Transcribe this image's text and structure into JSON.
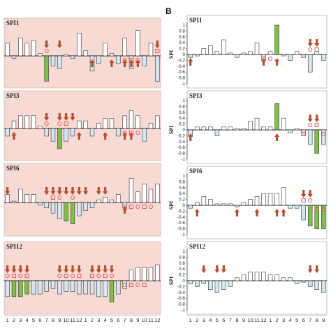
{
  "figure": {
    "panel_b_label": "B",
    "colors": {
      "panel_bg_left": "#f8dad4",
      "panel_bg_right": "#ffffff",
      "bar_positive": "#ffffff",
      "bar_negative": "#d2e8f4",
      "bar_drought": "#7fbf47",
      "arrow": "#b4502e",
      "marker": "#e05050"
    }
  },
  "chart_data": [
    {
      "type": "bar",
      "panel": "A",
      "title": "SPI1",
      "ylim": [
        -1.1,
        1.1
      ],
      "categories": [
        "1",
        "2",
        "3",
        "4",
        "5",
        "6",
        "7",
        "8",
        "9",
        "10",
        "11",
        "12",
        "1",
        "2",
        "3",
        "4",
        "5",
        "6",
        "7",
        "8",
        "9",
        "10",
        "11",
        "12"
      ],
      "values": [
        0.5,
        -0.1,
        0.7,
        0.5,
        0.6,
        0.1,
        -1.0,
        -0.4,
        -0.5,
        0.05,
        -0.1,
        0.9,
        0.2,
        -0.6,
        -0.3,
        0.5,
        0.1,
        -0.3,
        0.7,
        -0.5,
        1.0,
        -0.4,
        0.5,
        -1.0
      ],
      "drought_bars": [
        7
      ],
      "up_arrows": [
        14,
        17,
        19,
        20,
        21
      ],
      "down_arrows": [
        7,
        9,
        24
      ],
      "markers": [
        7,
        19,
        20,
        21,
        24
      ]
    },
    {
      "type": "bar",
      "panel": "A",
      "title": "SPI3",
      "ylim": [
        -1.1,
        1.1
      ],
      "categories": [
        "1",
        "2",
        "3",
        "4",
        "5",
        "6",
        "7",
        "8",
        "9",
        "10",
        "11",
        "12",
        "1",
        "2",
        "3",
        "4",
        "5",
        "6",
        "7",
        "8",
        "9",
        "10",
        "11",
        "12"
      ],
      "values": [
        -0.3,
        0.3,
        0.5,
        0.5,
        0.5,
        0.1,
        -0.3,
        -0.5,
        -0.8,
        -0.5,
        -0.3,
        0.3,
        0.3,
        -0.3,
        0.2,
        0.4,
        0.4,
        -0.3,
        0.5,
        0.7,
        0.5,
        -0.5,
        0.2,
        0.5
      ],
      "drought_bars": [
        9
      ],
      "up_arrows": [
        2,
        12,
        16,
        19,
        20
      ],
      "down_arrows": [
        7,
        9,
        10,
        11
      ],
      "markers": [
        7,
        9,
        10,
        19,
        20,
        21
      ]
    },
    {
      "type": "bar",
      "panel": "A",
      "title": "SPI6",
      "ylim": [
        -1.1,
        1.1
      ],
      "categories": [
        "1",
        "2",
        "3",
        "4",
        "5",
        "6",
        "7",
        "8",
        "9",
        "10",
        "11",
        "12",
        "1",
        "2",
        "3",
        "4",
        "5",
        "6",
        "7",
        "8",
        "9",
        "10",
        "11",
        "12"
      ],
      "values": [
        0.3,
        0.05,
        0.5,
        0.3,
        0.3,
        -0.1,
        -0.2,
        -0.4,
        -0.6,
        -0.7,
        -0.8,
        -0.5,
        -0.3,
        -0.2,
        0.1,
        0.2,
        0.1,
        0.3,
        -0.2,
        0.9,
        0.4,
        0.7,
        0.5,
        0.7
      ],
      "drought_bars": [
        10,
        11
      ],
      "up_arrows": [
        19
      ],
      "down_arrows": [
        1,
        7,
        8,
        9,
        10,
        11,
        12,
        13,
        15,
        16
      ],
      "markers": [
        8,
        9,
        11,
        19,
        20,
        21,
        22,
        23
      ]
    },
    {
      "type": "bar",
      "panel": "A",
      "title": "SPI12",
      "ylim": [
        -1.1,
        1.1
      ],
      "categories": [
        "1",
        "2",
        "3",
        "4",
        "5",
        "6",
        "7",
        "8",
        "9",
        "10",
        "11",
        "12",
        "1",
        "2",
        "3",
        "4",
        "5",
        "6",
        "7",
        "8",
        "9",
        "10",
        "11",
        "12"
      ],
      "values": [
        -0.6,
        -0.6,
        -0.6,
        -0.5,
        -0.5,
        -0.5,
        -0.4,
        -0.3,
        -0.5,
        -0.4,
        -0.4,
        -0.5,
        -0.5,
        -0.5,
        -0.6,
        -0.6,
        -0.8,
        -0.5,
        -0.3,
        0.4,
        0.5,
        0.5,
        0.5,
        0.6
      ],
      "drought_bars": [
        2,
        3,
        4,
        17
      ],
      "up_arrows": [],
      "down_arrows": [
        1,
        2,
        3,
        4,
        9,
        10,
        11,
        12,
        14,
        15,
        16,
        17
      ],
      "markers": [
        1,
        2,
        3,
        4,
        9,
        10,
        11,
        12,
        14,
        15,
        16,
        17,
        19,
        20,
        21,
        22
      ]
    },
    {
      "type": "bar",
      "panel": "B",
      "title": "SPI1",
      "ylabel": "SPI",
      "ylim": [
        -1.0,
        1.0
      ],
      "yticks": [
        1,
        0.8,
        0.6,
        0.4,
        0.2,
        0,
        -0.2,
        -0.4,
        -0.6,
        -0.8,
        -1
      ],
      "categories": [
        "1",
        "2",
        "3",
        "4",
        "5",
        "6",
        "7",
        "8",
        "9",
        "10",
        "11",
        "12",
        "1",
        "2",
        "3",
        "4",
        "5",
        "6",
        "7",
        "8",
        "9"
      ],
      "values": [
        -0.1,
        -0.05,
        0.2,
        0.3,
        0.1,
        0.5,
        0.05,
        -0.1,
        0.05,
        0.1,
        0.4,
        -0.2,
        0.1,
        1.0,
        -0.05,
        -0.2,
        0.1,
        -0.1,
        -0.6,
        0.1,
        -0.2
      ],
      "drought_bars": [
        14
      ],
      "up_arrows": [
        1,
        12,
        14
      ],
      "down_arrows": [
        19,
        20
      ],
      "markers": [
        12,
        13,
        19,
        20
      ]
    },
    {
      "type": "bar",
      "panel": "B",
      "title": "SPI3",
      "ylabel": "SPI",
      "ylim": [
        -1.0,
        1.0
      ],
      "yticks": [
        1,
        0.8,
        0.6,
        0.4,
        0.2,
        0,
        -0.2,
        -0.4,
        -0.6,
        -0.8,
        -1
      ],
      "categories": [
        "1",
        "2",
        "3",
        "4",
        "5",
        "6",
        "7",
        "8",
        "9",
        "10",
        "11",
        "12",
        "1",
        "2",
        "3",
        "4",
        "5",
        "6",
        "7",
        "8",
        "9"
      ],
      "values": [
        -0.2,
        0.1,
        0.1,
        0.1,
        -0.2,
        0.1,
        0.1,
        0.05,
        0.05,
        0.3,
        0.4,
        0.1,
        0.1,
        0.9,
        0.4,
        -0.1,
        0.05,
        -0.2,
        -0.5,
        -0.8,
        -0.5
      ],
      "drought_bars": [
        14,
        20
      ],
      "up_arrows": [
        1,
        14
      ],
      "down_arrows": [
        19,
        20
      ],
      "markers": [
        18,
        19,
        20,
        21
      ]
    },
    {
      "type": "bar",
      "panel": "B",
      "title": "SPI6",
      "ylabel": "SPI",
      "ylim": [
        -1.0,
        1.0
      ],
      "yticks": [
        1,
        0.8,
        0.6,
        0.4,
        0.2,
        0,
        -0.2,
        -0.4,
        -0.6,
        -0.8,
        -1
      ],
      "categories": [
        "1",
        "2",
        "3",
        "4",
        "5",
        "6",
        "7",
        "8",
        "9",
        "10",
        "11",
        "12",
        "1",
        "2",
        "3",
        "4",
        "5",
        "6",
        "7",
        "8",
        "9"
      ],
      "values": [
        -0.1,
        0.1,
        0.3,
        0.2,
        0.05,
        0.05,
        0.05,
        -0.05,
        0.1,
        0.2,
        0.3,
        0.4,
        0.4,
        0.4,
        0.6,
        -0.1,
        -0.1,
        -0.5,
        -0.7,
        -0.8,
        -0.8
      ],
      "drought_bars": [
        19,
        20,
        21
      ],
      "up_arrows": [
        2,
        8,
        11,
        14,
        15
      ],
      "down_arrows": [
        18,
        19
      ],
      "markers": [
        18,
        19,
        20,
        21
      ]
    },
    {
      "type": "bar",
      "panel": "B",
      "title": "SPI12",
      "ylabel": "SPI",
      "ylim": [
        -1.0,
        1.0
      ],
      "yticks": [
        1,
        0.8,
        0.6,
        0.4,
        0.2,
        0,
        -0.2,
        -0.4,
        -0.6,
        -0.8,
        -1
      ],
      "categories": [
        "1",
        "2",
        "3",
        "4",
        "5",
        "6",
        "7",
        "8",
        "9",
        "10",
        "11",
        "12",
        "1",
        "2",
        "3",
        "4",
        "5",
        "6",
        "7",
        "8",
        "9"
      ],
      "values": [
        -0.1,
        -0.2,
        -0.1,
        -0.3,
        -0.4,
        -0.3,
        -0.2,
        0.1,
        0.2,
        0.3,
        0.3,
        0.3,
        0.2,
        0.2,
        0.1,
        0.1,
        -0.1,
        -0.05,
        -0.2,
        -0.3,
        -0.4
      ],
      "drought_bars": [],
      "up_arrows": [],
      "down_arrows": [
        3,
        5,
        6,
        19,
        20
      ],
      "markers": []
    }
  ]
}
